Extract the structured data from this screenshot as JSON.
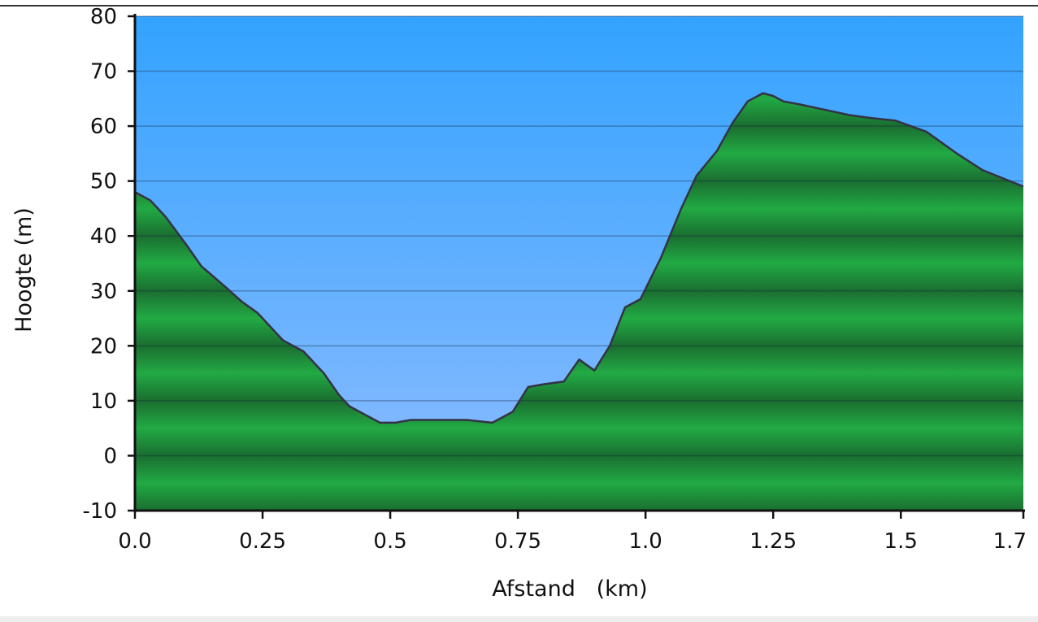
{
  "chart_data": {
    "type": "area",
    "xlabel": "Afstand   (km)",
    "ylabel": "Hoogte (m)",
    "xlim": [
      0,
      1.74
    ],
    "ylim": [
      -10,
      80
    ],
    "x_ticks": [
      "0.0",
      "0.25",
      "0.5",
      "0.75",
      "1.0",
      "1.25",
      "1.5",
      "1.7"
    ],
    "x_tick_values": [
      0,
      0.25,
      0.5,
      0.75,
      1.0,
      1.25,
      1.5,
      1.74
    ],
    "y_ticks": [
      "-10",
      "0",
      "10",
      "20",
      "30",
      "40",
      "50",
      "60",
      "70",
      "80"
    ],
    "y_tick_values": [
      -10,
      0,
      10,
      20,
      30,
      40,
      50,
      60,
      70,
      80
    ],
    "grid": true,
    "colors": {
      "sky_top": "#33a3ff",
      "sky_bottom": "#8ebcff",
      "terrain": "#22aa44",
      "terrain_dark": "#1a6e30",
      "outline": "#333344"
    },
    "series": [
      {
        "x": [
          0,
          0.03,
          0.06,
          0.1,
          0.13,
          0.18,
          0.21,
          0.24,
          0.29,
          0.33,
          0.37,
          0.4,
          0.42,
          0.45,
          0.48,
          0.51,
          0.54,
          0.57,
          0.61,
          0.65,
          0.7,
          0.74,
          0.77,
          0.8,
          0.84,
          0.87,
          0.9,
          0.93,
          0.96,
          0.99,
          1.03,
          1.07,
          1.1,
          1.14,
          1.17,
          1.2,
          1.23,
          1.25,
          1.27,
          1.3,
          1.35,
          1.4,
          1.44,
          1.49,
          1.55,
          1.61,
          1.66,
          1.74
        ],
        "y": [
          48,
          46.5,
          43.5,
          38.5,
          34.5,
          30.5,
          28,
          26,
          21,
          19,
          15,
          11,
          9,
          7.5,
          6,
          6,
          6.5,
          6.5,
          6.5,
          6.5,
          6,
          8,
          12.5,
          13,
          13.5,
          17.5,
          15.5,
          20,
          27,
          28.5,
          36,
          45,
          51,
          55.5,
          60.5,
          64.5,
          66,
          65.5,
          64.5,
          64,
          63,
          62,
          61.5,
          61,
          59,
          55,
          52,
          49
        ]
      }
    ]
  }
}
